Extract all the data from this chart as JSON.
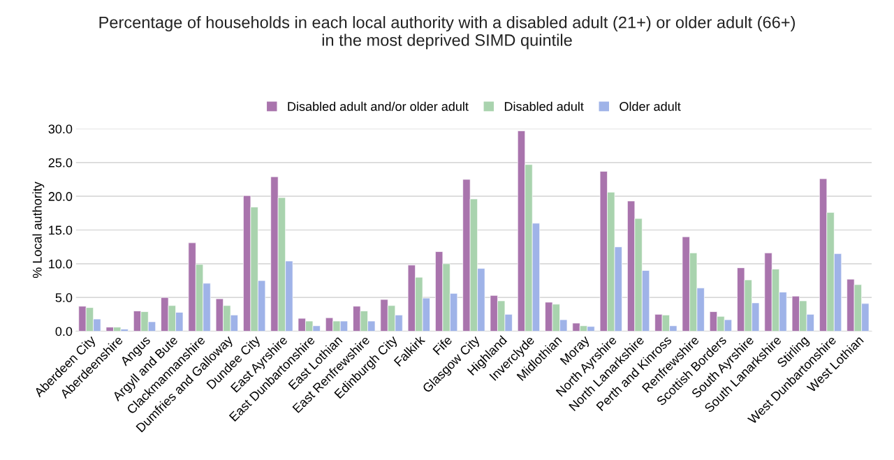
{
  "chart_data": {
    "type": "bar",
    "title": "Percentage of households in each local authority with a disabled adult (21+) or older adult (66+)\nin the most deprived SIMD quintile",
    "ylabel": "% Local authority",
    "categories": [
      "Aberdeen City",
      "Aberdeenshire",
      "Angus",
      "Argyll and Bute",
      "Clackmannanshire",
      "Dumfries and Galloway",
      "Dundee City",
      "East Ayrshire",
      "East Dunbartonshire",
      "East Lothian",
      "East Renfrewshire",
      "Edinburgh City",
      "Falkirk",
      "Fife",
      "Glasgow City",
      "Highland",
      "Inverclyde",
      "Midlothian",
      "Moray",
      "North Ayrshire",
      "North Lanarkshire",
      "Perth and Kinross",
      "Renfrewshire",
      "Scottish Borders",
      "South Ayrshire",
      "South Lanarkshire",
      "Stirling",
      "West Dunbartonshire",
      "West Lothian"
    ],
    "series": [
      {
        "name": "Disabled adult and/or older adult",
        "color": "#a974ad",
        "values": [
          3.7,
          0.6,
          3.0,
          5.0,
          13.1,
          4.8,
          20.1,
          22.9,
          1.9,
          2.0,
          3.7,
          4.7,
          9.8,
          11.8,
          22.5,
          5.3,
          29.7,
          4.3,
          1.2,
          23.7,
          19.3,
          2.5,
          14.0,
          2.9,
          9.4,
          11.6,
          5.2,
          22.6,
          7.7
        ]
      },
      {
        "name": "Disabled adult",
        "color": "#a9d3ae",
        "values": [
          3.5,
          0.6,
          2.9,
          3.8,
          9.9,
          3.8,
          18.4,
          19.8,
          1.5,
          1.5,
          3.0,
          3.8,
          8.0,
          10.0,
          19.6,
          4.5,
          24.7,
          4.0,
          0.8,
          20.6,
          16.7,
          2.4,
          11.6,
          2.2,
          7.6,
          9.2,
          4.5,
          17.6,
          6.9
        ]
      },
      {
        "name": "Older adult",
        "color": "#9fb3e8",
        "values": [
          1.8,
          0.3,
          1.4,
          2.8,
          7.1,
          2.4,
          7.5,
          10.4,
          0.8,
          1.5,
          1.5,
          2.4,
          4.9,
          5.6,
          9.3,
          2.5,
          16.0,
          1.7,
          0.7,
          12.5,
          9.0,
          0.8,
          6.4,
          1.7,
          4.2,
          5.8,
          2.5,
          11.5,
          4.1
        ]
      }
    ],
    "ylim": [
      0,
      30
    ],
    "yticks": [
      {
        "value": 0,
        "label": "0.0"
      },
      {
        "value": 5,
        "label": "5.0"
      },
      {
        "value": 10,
        "label": "10.0"
      },
      {
        "value": 15,
        "label": "15.0"
      },
      {
        "value": 20,
        "label": "20.0"
      },
      {
        "value": 25,
        "label": "25.0"
      },
      {
        "value": 30,
        "label": "30.0"
      }
    ],
    "grid": "y",
    "legend": "top"
  }
}
